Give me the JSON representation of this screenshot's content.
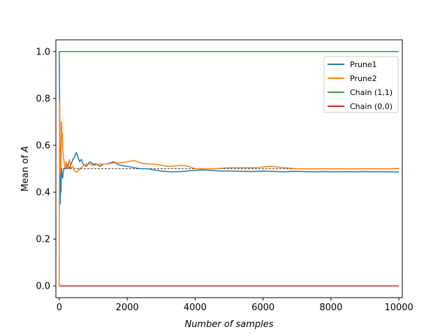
{
  "chart_data": {
    "type": "line",
    "xlabel": "Number of samples",
    "ylabel_prefix": "Mean of ",
    "ylabel_var": "A",
    "xlim": [
      -100,
      10100
    ],
    "ylim": [
      -0.05,
      1.05
    ],
    "xticks": [
      0,
      2000,
      4000,
      6000,
      8000,
      10000
    ],
    "xtick_labels": [
      "0",
      "2000",
      "4000",
      "6000",
      "8000",
      "10000"
    ],
    "yticks": [
      0.0,
      0.2,
      0.4,
      0.6,
      0.8,
      1.0
    ],
    "ytick_labels": [
      "0.0",
      "0.2",
      "0.4",
      "0.6",
      "0.8",
      "1.0"
    ],
    "grid": false,
    "legend_position": "top-right",
    "reference_line": {
      "y": 0.5,
      "x_range": [
        0,
        10000
      ],
      "style": "dashed",
      "color": "#000000"
    },
    "series": [
      {
        "name": "Prune1",
        "color": "#1f77b4",
        "x": [
          0,
          10,
          20,
          30,
          40,
          50,
          60,
          70,
          80,
          100,
          120,
          150,
          180,
          200,
          250,
          300,
          350,
          400,
          450,
          500,
          550,
          600,
          650,
          700,
          800,
          900,
          1000,
          1100,
          1200,
          1300,
          1400,
          1500,
          1600,
          1700,
          1800,
          2000,
          2200,
          2400,
          2600,
          2800,
          3000,
          3300,
          3600,
          3900,
          4200,
          4500,
          4800,
          5100,
          5400,
          5700,
          6000,
          6300,
          6600,
          6900,
          7200,
          7500,
          7800,
          8100,
          8400,
          8700,
          9000,
          9300,
          9600,
          10000
        ],
        "y": [
          1.0,
          0.8,
          0.55,
          0.35,
          0.44,
          0.4,
          0.48,
          0.5,
          0.47,
          0.46,
          0.49,
          0.5,
          0.51,
          0.5,
          0.52,
          0.5,
          0.52,
          0.54,
          0.55,
          0.57,
          0.55,
          0.53,
          0.54,
          0.52,
          0.51,
          0.53,
          0.52,
          0.52,
          0.51,
          0.52,
          0.52,
          0.525,
          0.53,
          0.52,
          0.515,
          0.51,
          0.505,
          0.5,
          0.5,
          0.495,
          0.49,
          0.487,
          0.488,
          0.492,
          0.495,
          0.493,
          0.49,
          0.49,
          0.489,
          0.488,
          0.49,
          0.489,
          0.487,
          0.489,
          0.488,
          0.487,
          0.488,
          0.487,
          0.488,
          0.487,
          0.488,
          0.487,
          0.487,
          0.486
        ]
      },
      {
        "name": "Prune2",
        "color": "#ff7f0e",
        "x": [
          0,
          5,
          10,
          15,
          20,
          30,
          40,
          50,
          60,
          70,
          80,
          90,
          100,
          120,
          150,
          180,
          200,
          250,
          300,
          350,
          400,
          450,
          500,
          550,
          600,
          700,
          800,
          900,
          1000,
          1200,
          1400,
          1600,
          1800,
          2000,
          2200,
          2400,
          2600,
          2800,
          3000,
          3200,
          3400,
          3600,
          3800,
          4000,
          4300,
          4600,
          5000,
          5400,
          5800,
          6200,
          6600,
          7000,
          7400,
          7800,
          8200,
          8600,
          9000,
          9400,
          9800,
          10000
        ],
        "y": [
          0.0,
          0.5,
          0.7,
          0.79,
          0.6,
          0.52,
          0.48,
          0.55,
          0.7,
          0.68,
          0.62,
          0.65,
          0.58,
          0.56,
          0.52,
          0.5,
          0.53,
          0.5,
          0.54,
          0.5,
          0.51,
          0.49,
          0.485,
          0.49,
          0.5,
          0.51,
          0.52,
          0.52,
          0.515,
          0.52,
          0.52,
          0.525,
          0.525,
          0.53,
          0.535,
          0.525,
          0.52,
          0.52,
          0.515,
          0.51,
          0.512,
          0.515,
          0.51,
          0.5,
          0.5,
          0.5,
          0.505,
          0.505,
          0.505,
          0.51,
          0.505,
          0.5,
          0.5,
          0.5,
          0.5,
          0.5,
          0.5,
          0.5,
          0.5,
          0.502
        ]
      },
      {
        "name": "Chain (1,1)",
        "color": "#2ca02c",
        "x": [
          0,
          10000
        ],
        "y": [
          1.0,
          1.0
        ]
      },
      {
        "name": "Chain (0,0)",
        "color": "#d62728",
        "x": [
          0,
          10000
        ],
        "y": [
          0.0,
          0.0
        ]
      }
    ]
  }
}
